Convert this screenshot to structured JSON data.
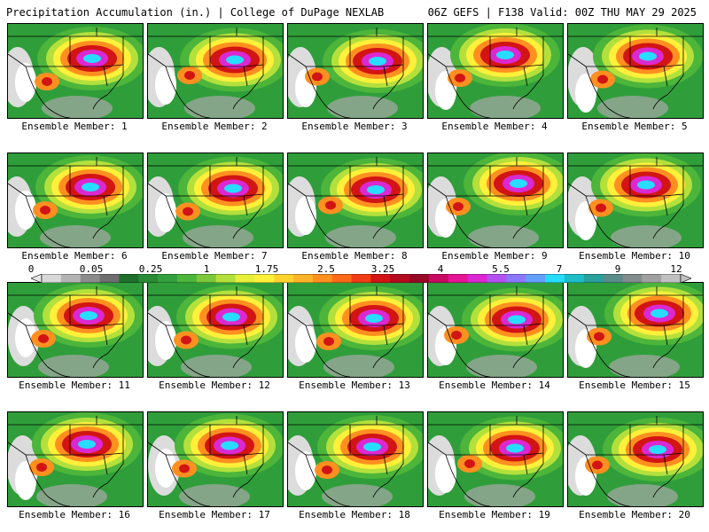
{
  "header": {
    "left": "Precipitation Accumulation (in.) | College of DuPage NEXLAB",
    "right": "06Z GEFS | F138 Valid: 00Z THU MAY 29 2025"
  },
  "members": [
    "Ensemble Member: 1",
    "Ensemble Member: 2",
    "Ensemble Member: 3",
    "Ensemble Member: 4",
    "Ensemble Member: 5",
    "Ensemble Member: 6",
    "Ensemble Member: 7",
    "Ensemble Member: 8",
    "Ensemble Member: 9",
    "Ensemble Member: 10",
    "Ensemble Member: 11",
    "Ensemble Member: 12",
    "Ensemble Member: 13",
    "Ensemble Member: 14",
    "Ensemble Member: 15",
    "Ensemble Member: 16",
    "Ensemble Member: 17",
    "Ensemble Member: 18",
    "Ensemble Member: 19",
    "Ensemble Member: 20"
  ],
  "colorbar": {
    "tick_labels": [
      "0",
      "0.05",
      "0.25",
      "1",
      "1.75",
      "2.5",
      "3.25",
      "4",
      "5.5",
      "7",
      "9",
      "12"
    ],
    "colors": [
      "#d8d8d8",
      "#b4b4b4",
      "#8c8c8c",
      "#6e6e6e",
      "#1f6e2b",
      "#2a8a35",
      "#33a040",
      "#4cb53a",
      "#7cc83a",
      "#b4e03c",
      "#e6f03a",
      "#fff03a",
      "#ffd22e",
      "#ffb428",
      "#ff9020",
      "#ff6a18",
      "#f03c14",
      "#d21414",
      "#b40a1e",
      "#960a28",
      "#c80a64",
      "#e61496",
      "#dc28d2",
      "#b450f0",
      "#8c78ff",
      "#64a0ff",
      "#28dcff",
      "#1ebec8",
      "#28a09b",
      "#5a8c8c",
      "#828c8c",
      "#a0a0a0",
      "#c0c0c0"
    ]
  }
}
